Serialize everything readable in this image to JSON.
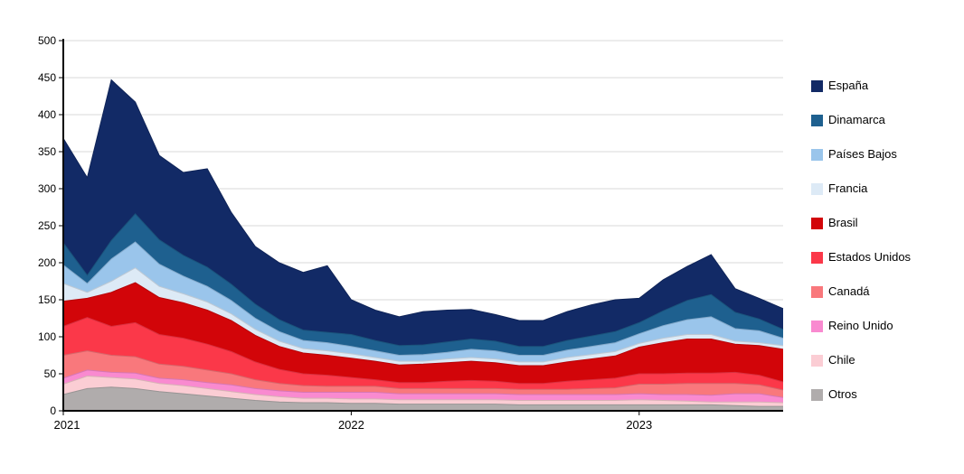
{
  "page": {
    "background": "#ffffff"
  },
  "chart_data": {
    "type": "area",
    "stacked": true,
    "title": "",
    "xlabel": "",
    "ylabel": "",
    "grid": true,
    "legend_position": "right",
    "ylim": [
      0,
      500
    ],
    "y_ticks": [
      0,
      50,
      100,
      150,
      200,
      250,
      300,
      350,
      400,
      450,
      500
    ],
    "months": [
      "2021-01",
      "2021-02",
      "2021-03",
      "2021-04",
      "2021-05",
      "2021-06",
      "2021-07",
      "2021-08",
      "2021-09",
      "2021-10",
      "2021-11",
      "2021-12",
      "2022-01",
      "2022-02",
      "2022-03",
      "2022-04",
      "2022-05",
      "2022-06",
      "2022-07",
      "2022-08",
      "2022-09",
      "2022-10",
      "2022-11",
      "2022-12",
      "2023-01",
      "2023-02",
      "2023-03",
      "2023-04",
      "2023-05",
      "2023-06",
      "2023-07"
    ],
    "x_tick_labels": [
      {
        "label": "2021",
        "index": 0
      },
      {
        "label": "2022",
        "index": 12
      },
      {
        "label": "2023",
        "index": 24
      }
    ],
    "stack_order_bottom_to_top": [
      "Otros",
      "Chile",
      "Reino Unido",
      "Canadá",
      "Estados Unidos",
      "Brasil",
      "Francia",
      "Países Bajos",
      "Dinamarca",
      "España"
    ],
    "series": [
      {
        "name": "España",
        "color": "#122a66",
        "values": [
          141,
          132,
          217,
          151,
          114,
          112,
          133,
          97,
          78,
          77,
          78,
          90,
          47,
          41,
          39,
          45,
          43,
          40,
          36,
          35,
          35,
          39,
          42,
          43,
          33,
          42,
          46,
          54,
          32,
          28,
          28
        ]
      },
      {
        "name": "Dinamarca",
        "color": "#1e608f",
        "values": [
          30,
          11,
          25,
          38,
          33,
          28,
          26,
          22,
          19,
          16,
          14,
          14,
          16,
          14,
          13,
          13,
          14,
          14,
          13,
          12,
          12,
          13,
          14,
          15,
          15,
          20,
          26,
          30,
          22,
          16,
          12
        ]
      },
      {
        "name": "Países Bajos",
        "color": "#9ac5eb",
        "values": [
          25,
          12,
          30,
          35,
          30,
          24,
          21,
          18,
          15,
          13,
          11,
          11,
          10,
          9,
          8,
          9,
          9,
          11,
          11,
          9,
          9,
          10,
          11,
          12,
          13,
          17,
          20,
          24,
          17,
          16,
          10
        ]
      },
      {
        "name": "Francia",
        "color": "#ddeaf6",
        "values": [
          24,
          8,
          15,
          20,
          15,
          12,
          11,
          9,
          8,
          7,
          6,
          6,
          6,
          5,
          5,
          4,
          5,
          5,
          5,
          5,
          5,
          6,
          6,
          6,
          5,
          6,
          6,
          6,
          4,
          4,
          5
        ]
      },
      {
        "name": "Brasil",
        "color": "#d20509",
        "values": [
          34,
          26,
          46,
          54,
          50,
          48,
          46,
          42,
          36,
          31,
          28,
          27,
          26,
          25,
          24,
          25,
          25,
          26,
          25,
          24,
          24,
          26,
          28,
          30,
          36,
          42,
          46,
          46,
          38,
          40,
          44
        ]
      },
      {
        "name": "Estados Unidos",
        "color": "#fb3849",
        "values": [
          39,
          45,
          39,
          46,
          40,
          38,
          35,
          30,
          24,
          19,
          16,
          15,
          12,
          9,
          8,
          8,
          10,
          11,
          10,
          8,
          8,
          11,
          12,
          13,
          14,
          14,
          14,
          14,
          15,
          13,
          11
        ]
      },
      {
        "name": "Canadá",
        "color": "#f9787c",
        "values": [
          31,
          26,
          23,
          22,
          19,
          18,
          17,
          15,
          12,
          10,
          9,
          8,
          8,
          8,
          7,
          7,
          7,
          7,
          7,
          7,
          7,
          7,
          8,
          9,
          13,
          14,
          15,
          16,
          14,
          12,
          10
        ]
      },
      {
        "name": "Reino Unido",
        "color": "#f98ad0",
        "values": [
          8,
          8,
          7,
          8,
          7,
          8,
          8,
          9,
          8,
          8,
          8,
          8,
          9,
          9,
          8,
          8,
          8,
          8,
          8,
          8,
          8,
          8,
          8,
          8,
          8,
          8,
          9,
          9,
          11,
          11,
          7
        ]
      },
      {
        "name": "Chile",
        "color": "#fbcdd4",
        "values": [
          14,
          17,
          13,
          13,
          11,
          11,
          10,
          9,
          8,
          7,
          6,
          6,
          6,
          6,
          6,
          6,
          6,
          6,
          6,
          6,
          6,
          6,
          6,
          6,
          7,
          6,
          5,
          4,
          5,
          6,
          5
        ]
      },
      {
        "name": "Otros",
        "color": "#b0acac",
        "values": [
          22,
          30,
          32,
          30,
          26,
          23,
          20,
          17,
          14,
          12,
          11,
          11,
          10,
          10,
          9,
          9,
          9,
          9,
          9,
          8,
          8,
          8,
          8,
          8,
          8,
          8,
          8,
          8,
          7,
          6,
          6
        ]
      }
    ],
    "colors": {
      "gridline": "#dadada",
      "axis": "#000000",
      "tick_text": "#000000"
    }
  }
}
